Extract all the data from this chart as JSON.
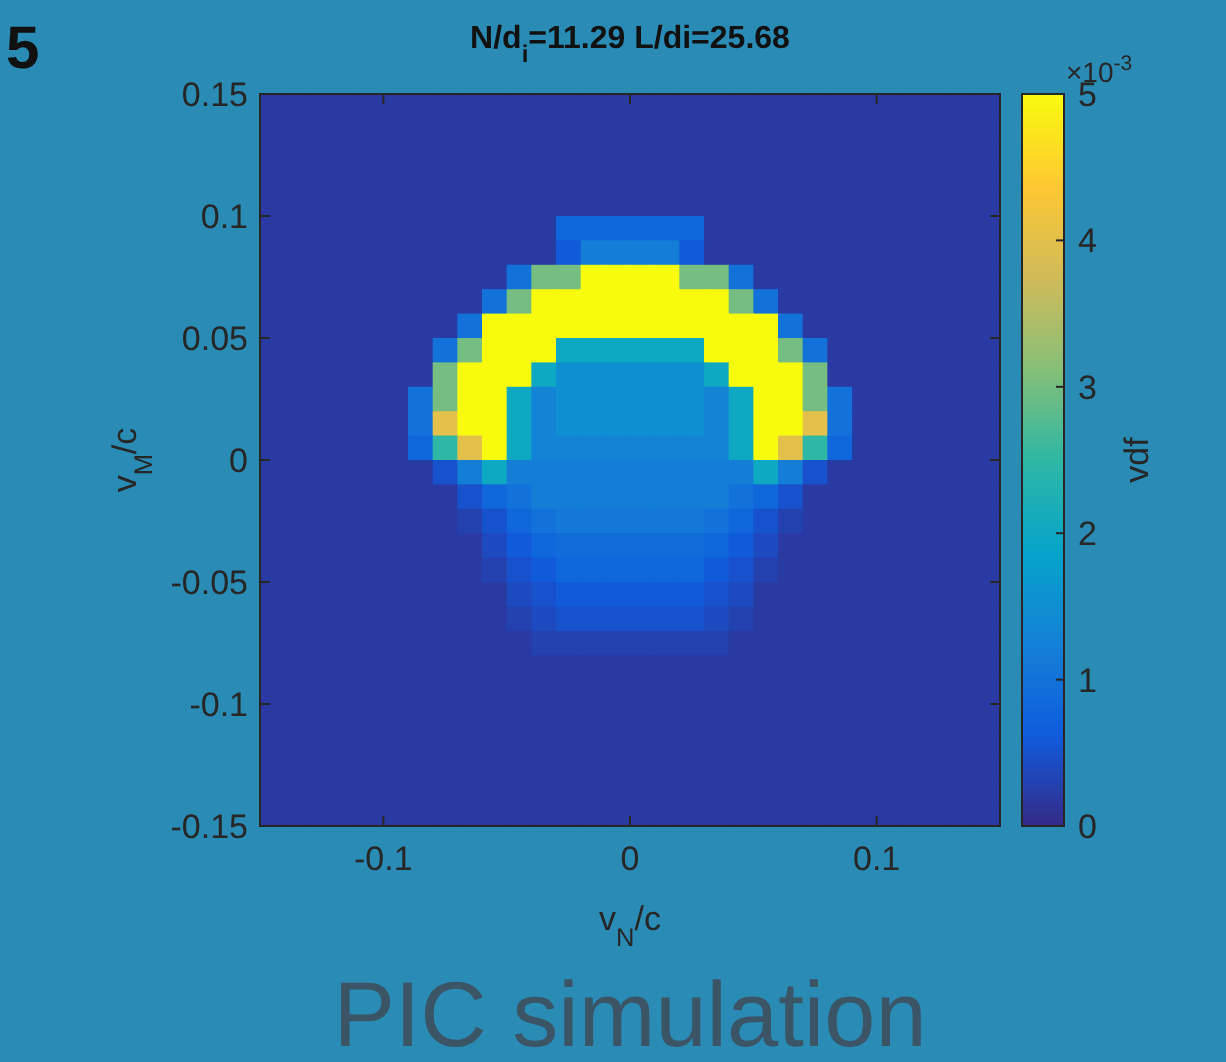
{
  "chart_data": {
    "type": "heatmap",
    "title": "N/d$_{i}$=11.29  L/di=25.68",
    "xlabel": "v$_{N}$/c",
    "ylabel": "v$_{M}$/c",
    "clabel": "vdf",
    "annotations": [
      "×10$^{-3}$",
      "PIC simulation",
      "5"
    ],
    "xlim": [
      -0.15,
      0.15
    ],
    "ylim": [
      -0.15,
      0.15
    ],
    "xticks": [
      -0.1,
      0,
      0.1
    ],
    "yticks": [
      -0.15,
      -0.1,
      -0.05,
      0,
      0.05,
      0.1,
      0.15
    ],
    "clim": [
      0,
      5
    ],
    "cticks": [
      0,
      1,
      2,
      3,
      4,
      5
    ],
    "x": [
      -0.145,
      -0.135,
      -0.125,
      -0.115,
      -0.105,
      -0.095,
      -0.085,
      -0.075,
      -0.065,
      -0.055,
      -0.045,
      -0.035,
      -0.025,
      -0.015,
      -0.005,
      0.005,
      0.015,
      0.025,
      0.035,
      0.045,
      0.055,
      0.065,
      0.075,
      0.085,
      0.095,
      0.105,
      0.115,
      0.125,
      0.135,
      0.145
    ],
    "y": [
      0.145,
      0.135,
      0.125,
      0.115,
      0.105,
      0.095,
      0.085,
      0.075,
      0.065,
      0.055,
      0.045,
      0.035,
      0.025,
      0.015,
      0.005,
      -0.005,
      -0.015,
      -0.025,
      -0.035,
      -0.045,
      -0.055,
      -0.065,
      -0.075,
      -0.085,
      -0.095,
      -0.105,
      -0.115,
      -0.125,
      -0.135,
      -0.145
    ],
    "cells": [
      [
        0.2,
        0.2,
        0.2,
        0.2,
        0.2,
        0.2,
        0.2,
        0.2,
        0.2,
        0.2,
        0.2,
        0.2,
        0.2,
        0.2,
        0.2,
        0.2,
        0.2,
        0.2,
        0.2,
        0.2,
        0.2,
        0.2,
        0.2,
        0.2,
        0.2,
        0.2,
        0.2,
        0.2,
        0.2,
        0.2
      ],
      [
        0.2,
        0.2,
        0.2,
        0.2,
        0.2,
        0.2,
        0.2,
        0.2,
        0.2,
        0.2,
        0.2,
        0.2,
        0.2,
        0.2,
        0.2,
        0.2,
        0.2,
        0.2,
        0.2,
        0.2,
        0.2,
        0.2,
        0.2,
        0.2,
        0.2,
        0.2,
        0.2,
        0.2,
        0.2,
        0.2
      ],
      [
        0.2,
        0.2,
        0.2,
        0.2,
        0.2,
        0.2,
        0.2,
        0.2,
        0.2,
        0.2,
        0.2,
        0.2,
        0.2,
        0.2,
        0.2,
        0.2,
        0.2,
        0.2,
        0.2,
        0.2,
        0.2,
        0.2,
        0.2,
        0.2,
        0.2,
        0.2,
        0.2,
        0.2,
        0.2,
        0.2
      ],
      [
        0.2,
        0.2,
        0.2,
        0.2,
        0.2,
        0.2,
        0.2,
        0.2,
        0.2,
        0.2,
        0.2,
        0.2,
        0.2,
        0.2,
        0.2,
        0.2,
        0.2,
        0.2,
        0.2,
        0.2,
        0.2,
        0.2,
        0.2,
        0.2,
        0.2,
        0.2,
        0.2,
        0.2,
        0.2,
        0.2
      ],
      [
        0.2,
        0.2,
        0.2,
        0.2,
        0.2,
        0.2,
        0.2,
        0.2,
        0.2,
        0.2,
        0.2,
        0.2,
        0.2,
        0.2,
        0.2,
        0.2,
        0.2,
        0.2,
        0.2,
        0.2,
        0.2,
        0.2,
        0.2,
        0.2,
        0.2,
        0.2,
        0.2,
        0.2,
        0.2,
        0.2
      ],
      [
        0.2,
        0.2,
        0.2,
        0.2,
        0.2,
        0.2,
        0.2,
        0.2,
        0.2,
        0.2,
        0.2,
        0.2,
        0.8,
        0.8,
        0.8,
        0.8,
        0.8,
        0.8,
        0.2,
        0.2,
        0.2,
        0.2,
        0.2,
        0.2,
        0.2,
        0.2,
        0.2,
        0.2,
        0.2,
        0.2
      ],
      [
        0.2,
        0.2,
        0.2,
        0.2,
        0.2,
        0.2,
        0.2,
        0.2,
        0.2,
        0.2,
        0.2,
        0.2,
        0.6,
        1.2,
        1.2,
        1.2,
        1.2,
        0.6,
        0.2,
        0.2,
        0.2,
        0.2,
        0.2,
        0.2,
        0.2,
        0.2,
        0.2,
        0.2,
        0.2,
        0.2
      ],
      [
        0.2,
        0.2,
        0.2,
        0.2,
        0.2,
        0.2,
        0.2,
        0.2,
        0.2,
        0.2,
        1,
        3,
        3,
        5,
        5,
        5,
        5,
        3,
        3,
        1,
        0.2,
        0.2,
        0.2,
        0.2,
        0.2,
        0.2,
        0.2,
        0.2,
        0.2,
        0.2
      ],
      [
        0.2,
        0.2,
        0.2,
        0.2,
        0.2,
        0.2,
        0.2,
        0.2,
        0.2,
        1,
        3,
        5,
        5,
        5,
        5,
        5,
        5,
        5,
        5,
        3,
        1,
        0.2,
        0.2,
        0.2,
        0.2,
        0.2,
        0.2,
        0.2,
        0.2,
        0.2
      ],
      [
        0.2,
        0.2,
        0.2,
        0.2,
        0.2,
        0.2,
        0.2,
        0.2,
        1,
        5,
        5,
        5,
        5,
        5,
        5,
        5,
        5,
        5,
        5,
        5,
        5,
        1,
        0.2,
        0.2,
        0.2,
        0.2,
        0.2,
        0.2,
        0.2,
        0.2
      ],
      [
        0.2,
        0.2,
        0.2,
        0.2,
        0.2,
        0.2,
        0.2,
        1,
        3,
        5,
        5,
        5,
        2,
        2,
        2,
        2,
        2,
        2,
        5,
        5,
        5,
        3,
        1,
        0.2,
        0.2,
        0.2,
        0.2,
        0.2,
        0.2,
        0.2
      ],
      [
        0.2,
        0.2,
        0.2,
        0.2,
        0.2,
        0.2,
        0.2,
        3,
        5,
        5,
        5,
        2,
        1.5,
        1.5,
        1.5,
        1.5,
        1.5,
        1.5,
        2,
        5,
        5,
        5,
        3,
        0.2,
        0.2,
        0.2,
        0.2,
        0.2,
        0.2,
        0.2
      ],
      [
        0.2,
        0.2,
        0.2,
        0.2,
        0.2,
        0.2,
        1,
        3,
        5,
        5,
        2,
        1.3,
        1.5,
        1.5,
        1.5,
        1.5,
        1.5,
        1.5,
        1.3,
        2,
        5,
        5,
        3,
        1,
        0.2,
        0.2,
        0.2,
        0.2,
        0.2,
        0.2
      ],
      [
        0.2,
        0.2,
        0.2,
        0.2,
        0.2,
        0.2,
        1,
        4,
        5,
        5,
        2,
        1.3,
        1.5,
        1.5,
        1.5,
        1.5,
        1.5,
        1.5,
        1.3,
        2,
        5,
        5,
        4,
        1,
        0.2,
        0.2,
        0.2,
        0.2,
        0.2,
        0.2
      ],
      [
        0.2,
        0.2,
        0.2,
        0.2,
        0.2,
        0.2,
        0.8,
        2.5,
        4,
        5,
        2,
        1.3,
        1.3,
        1.3,
        1.3,
        1.3,
        1.3,
        1.3,
        1.3,
        2,
        5,
        4,
        2.5,
        0.8,
        0.2,
        0.2,
        0.2,
        0.2,
        0.2,
        0.2
      ],
      [
        0.2,
        0.2,
        0.2,
        0.2,
        0.2,
        0.2,
        0.2,
        0.5,
        1.2,
        2,
        1.2,
        1.2,
        1.2,
        1.2,
        1.2,
        1.2,
        1.2,
        1.2,
        1.2,
        1.2,
        2,
        1.2,
        0.5,
        0.2,
        0.2,
        0.2,
        0.2,
        0.2,
        0.2,
        0.2
      ],
      [
        0.2,
        0.2,
        0.2,
        0.2,
        0.2,
        0.2,
        0.2,
        0.2,
        0.5,
        0.8,
        1,
        1.2,
        1.2,
        1.2,
        1.2,
        1.2,
        1.2,
        1.2,
        1.2,
        1,
        0.8,
        0.5,
        0.2,
        0.2,
        0.2,
        0.2,
        0.2,
        0.2,
        0.2,
        0.2
      ],
      [
        0.2,
        0.2,
        0.2,
        0.2,
        0.2,
        0.2,
        0.2,
        0.2,
        0.3,
        0.5,
        0.8,
        1,
        1.1,
        1.1,
        1.1,
        1.1,
        1.1,
        1.1,
        1,
        0.8,
        0.5,
        0.3,
        0.2,
        0.2,
        0.2,
        0.2,
        0.2,
        0.2,
        0.2,
        0.2
      ],
      [
        0.2,
        0.2,
        0.2,
        0.2,
        0.2,
        0.2,
        0.2,
        0.2,
        0.2,
        0.4,
        0.6,
        0.8,
        0.9,
        0.9,
        0.9,
        0.9,
        0.9,
        0.9,
        0.8,
        0.6,
        0.4,
        0.2,
        0.2,
        0.2,
        0.2,
        0.2,
        0.2,
        0.2,
        0.2,
        0.2
      ],
      [
        0.2,
        0.2,
        0.2,
        0.2,
        0.2,
        0.2,
        0.2,
        0.2,
        0.2,
        0.3,
        0.5,
        0.6,
        0.8,
        0.8,
        0.8,
        0.8,
        0.8,
        0.8,
        0.6,
        0.5,
        0.3,
        0.2,
        0.2,
        0.2,
        0.2,
        0.2,
        0.2,
        0.2,
        0.2,
        0.2
      ],
      [
        0.2,
        0.2,
        0.2,
        0.2,
        0.2,
        0.2,
        0.2,
        0.2,
        0.2,
        0.2,
        0.4,
        0.5,
        0.6,
        0.6,
        0.6,
        0.6,
        0.6,
        0.6,
        0.5,
        0.4,
        0.2,
        0.2,
        0.2,
        0.2,
        0.2,
        0.2,
        0.2,
        0.2,
        0.2,
        0.2
      ],
      [
        0.2,
        0.2,
        0.2,
        0.2,
        0.2,
        0.2,
        0.2,
        0.2,
        0.2,
        0.2,
        0.3,
        0.4,
        0.5,
        0.5,
        0.5,
        0.5,
        0.5,
        0.5,
        0.4,
        0.3,
        0.2,
        0.2,
        0.2,
        0.2,
        0.2,
        0.2,
        0.2,
        0.2,
        0.2,
        0.2
      ],
      [
        0.2,
        0.2,
        0.2,
        0.2,
        0.2,
        0.2,
        0.2,
        0.2,
        0.2,
        0.2,
        0.2,
        0.3,
        0.3,
        0.3,
        0.3,
        0.3,
        0.3,
        0.3,
        0.3,
        0.2,
        0.2,
        0.2,
        0.2,
        0.2,
        0.2,
        0.2,
        0.2,
        0.2,
        0.2,
        0.2
      ],
      [
        0.2,
        0.2,
        0.2,
        0.2,
        0.2,
        0.2,
        0.2,
        0.2,
        0.2,
        0.2,
        0.2,
        0.2,
        0.2,
        0.2,
        0.2,
        0.2,
        0.2,
        0.2,
        0.2,
        0.2,
        0.2,
        0.2,
        0.2,
        0.2,
        0.2,
        0.2,
        0.2,
        0.2,
        0.2,
        0.2
      ],
      [
        0.2,
        0.2,
        0.2,
        0.2,
        0.2,
        0.2,
        0.2,
        0.2,
        0.2,
        0.2,
        0.2,
        0.2,
        0.2,
        0.2,
        0.2,
        0.2,
        0.2,
        0.2,
        0.2,
        0.2,
        0.2,
        0.2,
        0.2,
        0.2,
        0.2,
        0.2,
        0.2,
        0.2,
        0.2,
        0.2
      ],
      [
        0.2,
        0.2,
        0.2,
        0.2,
        0.2,
        0.2,
        0.2,
        0.2,
        0.2,
        0.2,
        0.2,
        0.2,
        0.2,
        0.2,
        0.2,
        0.2,
        0.2,
        0.2,
        0.2,
        0.2,
        0.2,
        0.2,
        0.2,
        0.2,
        0.2,
        0.2,
        0.2,
        0.2,
        0.2,
        0.2
      ],
      [
        0.2,
        0.2,
        0.2,
        0.2,
        0.2,
        0.2,
        0.2,
        0.2,
        0.2,
        0.2,
        0.2,
        0.2,
        0.2,
        0.2,
        0.2,
        0.2,
        0.2,
        0.2,
        0.2,
        0.2,
        0.2,
        0.2,
        0.2,
        0.2,
        0.2,
        0.2,
        0.2,
        0.2,
        0.2,
        0.2
      ],
      [
        0.2,
        0.2,
        0.2,
        0.2,
        0.2,
        0.2,
        0.2,
        0.2,
        0.2,
        0.2,
        0.2,
        0.2,
        0.2,
        0.2,
        0.2,
        0.2,
        0.2,
        0.2,
        0.2,
        0.2,
        0.2,
        0.2,
        0.2,
        0.2,
        0.2,
        0.2,
        0.2,
        0.2,
        0.2,
        0.2
      ],
      [
        0.2,
        0.2,
        0.2,
        0.2,
        0.2,
        0.2,
        0.2,
        0.2,
        0.2,
        0.2,
        0.2,
        0.2,
        0.2,
        0.2,
        0.2,
        0.2,
        0.2,
        0.2,
        0.2,
        0.2,
        0.2,
        0.2,
        0.2,
        0.2,
        0.2,
        0.2,
        0.2,
        0.2,
        0.2,
        0.2
      ],
      [
        0.2,
        0.2,
        0.2,
        0.2,
        0.2,
        0.2,
        0.2,
        0.2,
        0.2,
        0.2,
        0.2,
        0.2,
        0.2,
        0.2,
        0.2,
        0.2,
        0.2,
        0.2,
        0.2,
        0.2,
        0.2,
        0.2,
        0.2,
        0.2,
        0.2,
        0.2,
        0.2,
        0.2,
        0.2,
        0.2
      ]
    ]
  }
}
